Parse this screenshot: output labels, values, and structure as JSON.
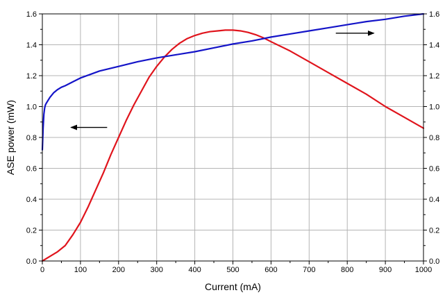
{
  "chart_data": {
    "type": "line",
    "xlabel": "Current (mA)",
    "ylabel": "ASE power (mW)",
    "xlim": [
      0,
      1000
    ],
    "ylim": [
      0,
      1.6
    ],
    "y2lim": [
      0,
      1.6
    ],
    "grid": true,
    "x_ticks": [
      0,
      100,
      200,
      300,
      400,
      500,
      600,
      700,
      800,
      900,
      1000
    ],
    "y_ticks": [
      0.0,
      0.2,
      0.4,
      0.6,
      0.8,
      1.0,
      1.2,
      1.4,
      1.6
    ],
    "x_tick_labels": [
      "0",
      "100",
      "200",
      "300",
      "400",
      "500",
      "600",
      "700",
      "800",
      "900",
      "1000"
    ],
    "y_tick_labels": [
      "0.0",
      "0.2",
      "0.4",
      "0.6",
      "0.8",
      "1.0",
      "1.2",
      "1.4",
      "1.6"
    ],
    "y2_tick_labels": [
      "0.0",
      "0.2",
      "0.4",
      "0.6",
      "0.8",
      "1.0",
      "1.2",
      "1.4",
      "1.6"
    ],
    "series": [
      {
        "axis": "left",
        "color": "#e0141c",
        "x": [
          0,
          20,
          40,
          60,
          80,
          100,
          120,
          140,
          160,
          180,
          200,
          220,
          240,
          260,
          280,
          300,
          320,
          340,
          360,
          380,
          400,
          420,
          440,
          460,
          480,
          500,
          520,
          540,
          560,
          580,
          600,
          650,
          700,
          750,
          800,
          850,
          900,
          950,
          1000
        ],
        "y": [
          0.0,
          0.03,
          0.06,
          0.1,
          0.17,
          0.25,
          0.35,
          0.46,
          0.57,
          0.69,
          0.8,
          0.91,
          1.01,
          1.1,
          1.19,
          1.26,
          1.32,
          1.37,
          1.41,
          1.44,
          1.46,
          1.475,
          1.485,
          1.49,
          1.495,
          1.495,
          1.49,
          1.48,
          1.465,
          1.445,
          1.42,
          1.36,
          1.29,
          1.22,
          1.15,
          1.08,
          1.0,
          0.93,
          0.86
        ]
      },
      {
        "axis": "right",
        "color": "#1414c8",
        "x": [
          0,
          2,
          4,
          6,
          8,
          10,
          15,
          20,
          30,
          40,
          50,
          60,
          80,
          100,
          150,
          200,
          250,
          300,
          350,
          400,
          450,
          500,
          550,
          600,
          650,
          700,
          750,
          800,
          850,
          900,
          950,
          1000
        ],
        "y": [
          0.72,
          0.86,
          0.95,
          0.99,
          1.01,
          1.02,
          1.04,
          1.06,
          1.09,
          1.11,
          1.125,
          1.135,
          1.16,
          1.185,
          1.23,
          1.26,
          1.29,
          1.315,
          1.335,
          1.355,
          1.38,
          1.405,
          1.425,
          1.45,
          1.47,
          1.49,
          1.51,
          1.53,
          1.55,
          1.565,
          1.585,
          1.6
        ]
      }
    ],
    "annotations": [
      {
        "type": "arrow",
        "direction": "left",
        "x_start": 170,
        "x_end": 75,
        "y": 0.865
      },
      {
        "type": "arrow",
        "direction": "right",
        "x_start": 770,
        "x_end": 870,
        "y": 1.475
      }
    ]
  }
}
